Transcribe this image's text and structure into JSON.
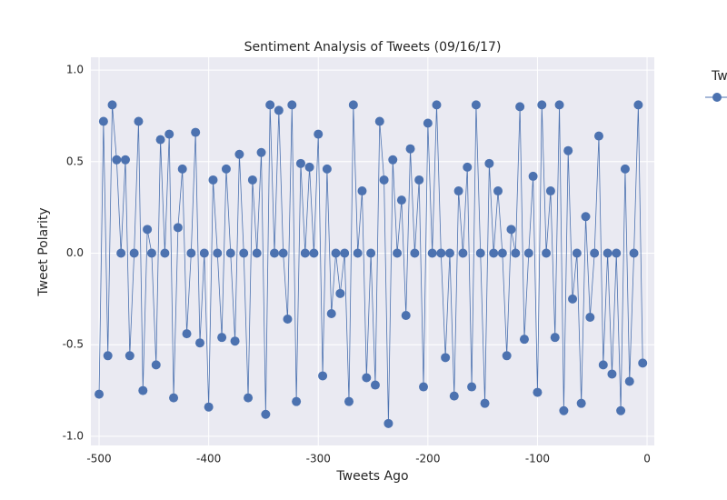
{
  "chart_data": {
    "type": "line",
    "title": "Sentiment Analysis of Tweets (09/16/17)",
    "x_label": "Tweets Ago",
    "y_label": "Tweet Polarity",
    "legend_title": "Tw",
    "xlim": [
      -507.5,
      6.6
    ],
    "ylim": [
      -1.05,
      1.07
    ],
    "xticks": [
      -500,
      -400,
      -300,
      -200,
      -100,
      0
    ],
    "yticks": [
      {
        "value": 1,
        "label": "1.0"
      },
      0.5,
      {
        "value": 0,
        "label": "0.0"
      },
      -0.5,
      {
        "value": -1,
        "label": "-1.0"
      }
    ],
    "grid": true,
    "x": [
      -500,
      -496,
      -492,
      -488,
      -484,
      -480,
      -476,
      -472,
      -468,
      -464,
      -460,
      -456,
      -452,
      -448,
      -444,
      -440,
      -436,
      -432,
      -428,
      -424,
      -420,
      -416,
      -412,
      -408,
      -404,
      -400,
      -396,
      -392,
      -388,
      -384,
      -380,
      -376,
      -372,
      -368,
      -364,
      -360,
      -356,
      -352,
      -348,
      -344,
      -340,
      -336,
      -332,
      -328,
      -324,
      -320,
      -316,
      -312,
      -308,
      -304,
      -300,
      -296,
      -292,
      -288,
      -284,
      -280,
      -276,
      -272,
      -268,
      -264,
      -260,
      -256,
      -252,
      -248,
      -244,
      -240,
      -236,
      -232,
      -228,
      -224,
      -220,
      -216,
      -212,
      -208,
      -204,
      -200,
      -196,
      -192,
      -188,
      -184,
      -180,
      -176,
      -172,
      -168,
      -164,
      -160,
      -156,
      -152,
      -148,
      -144,
      -140,
      -136,
      -132,
      -128,
      -124,
      -120,
      -116,
      -112,
      -108,
      -104,
      -100,
      -96,
      -92,
      -88,
      -84,
      -80,
      -76,
      -72,
      -68,
      -64,
      -60,
      -56,
      -52,
      -48,
      -44,
      -40,
      -36,
      -32,
      -28,
      -24,
      -20,
      -16,
      -12,
      -8,
      -4
    ],
    "series": [
      {
        "name": null,
        "color": "#4c72b0",
        "values": [
          -0.77,
          0.72,
          -0.56,
          0.81,
          0.51,
          0,
          0.51,
          -0.56,
          0,
          0.72,
          -0.75,
          0.13,
          0,
          -0.61,
          0.62,
          0,
          0.65,
          -0.79,
          0.14,
          0.46,
          -0.44,
          0,
          0.66,
          -0.49,
          0,
          -0.84,
          0.4,
          0,
          -0.46,
          0.46,
          0,
          -0.48,
          0.54,
          0,
          -0.79,
          0.4,
          0,
          0.55,
          -0.88,
          0.81,
          0,
          0.78,
          0,
          -0.36,
          0.81,
          -0.81,
          0.49,
          0,
          0.47,
          0,
          0.65,
          -0.67,
          0.46,
          -0.33,
          0,
          -0.22,
          0,
          -0.81,
          0.81,
          0,
          0.34,
          -0.68,
          0,
          -0.72,
          0.72,
          0.4,
          -0.93,
          0.51,
          0,
          0.29,
          -0.34,
          0.57,
          0,
          0.4,
          -0.73,
          0.71,
          0,
          0.81,
          0,
          -0.57,
          0,
          -0.78,
          0.34,
          0,
          0.47,
          -0.73,
          0.81,
          0,
          -0.82,
          0.49,
          0,
          0.34,
          0,
          -0.56,
          0.13,
          0,
          0.8,
          -0.47,
          0,
          0.42,
          -0.76,
          0.81,
          0,
          0.34,
          -0.46,
          0.81,
          -0.86,
          0.56,
          -0.25,
          0,
          -0.82,
          0.2,
          -0.35,
          0,
          0.64,
          -0.61,
          0,
          -0.66,
          0,
          -0.86,
          0.46,
          -0.7,
          0,
          0.81,
          -0.6
        ]
      }
    ]
  }
}
